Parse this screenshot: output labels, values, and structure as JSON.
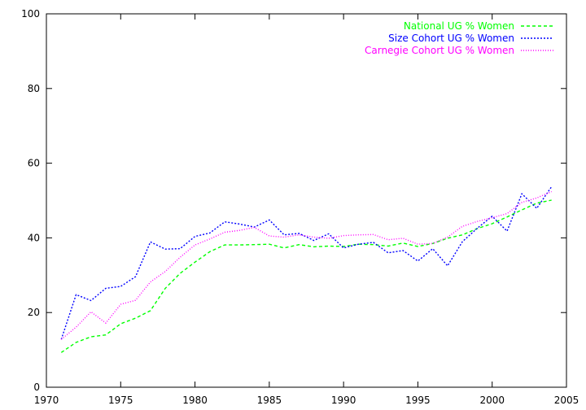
{
  "chart_data": {
    "type": "line",
    "title": "",
    "xlabel": "",
    "ylabel": "",
    "xlim": [
      1970,
      2005
    ],
    "ylim": [
      0,
      100
    ],
    "xticks": [
      1970,
      1975,
      1980,
      1985,
      1990,
      1995,
      2000,
      2005
    ],
    "yticks": [
      0,
      20,
      40,
      60,
      80,
      100
    ],
    "grid": false,
    "legend_position": "top-right",
    "x": [
      1971,
      1972,
      1973,
      1974,
      1975,
      1976,
      1977,
      1978,
      1979,
      1980,
      1981,
      1982,
      1983,
      1984,
      1985,
      1986,
      1987,
      1988,
      1989,
      1990,
      1991,
      1992,
      1993,
      1994,
      1995,
      1996,
      1997,
      1998,
      1999,
      2000,
      2001,
      2002,
      2003,
      2004
    ],
    "series": [
      {
        "name": "National UG % Women",
        "color": "#00ff00",
        "dash": "dashed",
        "values": [
          9.3,
          12,
          13.5,
          14,
          17,
          18.5,
          20.5,
          26.5,
          30.5,
          33.5,
          36.3,
          38.1,
          38.1,
          38.2,
          38.3,
          37.3,
          38.2,
          37.6,
          37.8,
          37.7,
          38.3,
          38.2,
          37.8,
          38.6,
          37.7,
          38.5,
          39.9,
          40.8,
          42.5,
          43.8,
          45.6,
          47.5,
          49.3,
          50.1
        ]
      },
      {
        "name": "Size Cohort UG % Women",
        "color": "#0000ff",
        "dash": "dotted",
        "values": [
          12.8,
          24.8,
          23.2,
          26.5,
          27,
          29.6,
          38.9,
          37,
          37.1,
          40.4,
          41.3,
          44.3,
          43.7,
          42.9,
          44.8,
          40.8,
          41.2,
          39.3,
          41.1,
          37.3,
          38.3,
          38.8,
          36,
          36.6,
          33.8,
          37.1,
          32.5,
          39,
          42.6,
          45.8,
          41.8,
          51.8,
          47.9,
          53.7
        ]
      },
      {
        "name": "Carnegie Cohort UG % Women",
        "color": "#ff00ff",
        "dash": "dotted-fine",
        "values": [
          12.8,
          16.1,
          20.2,
          17.2,
          22.2,
          23.3,
          28.2,
          31,
          34.8,
          38.1,
          39.7,
          41.5,
          42,
          42.8,
          40.5,
          40.2,
          40.8,
          40.2,
          39.9,
          40.6,
          40.8,
          40.9,
          39.5,
          39.9,
          38.3,
          38.5,
          40.2,
          43.1,
          44.4,
          45.4,
          46.5,
          49.5,
          50.7,
          52.4
        ]
      }
    ]
  }
}
